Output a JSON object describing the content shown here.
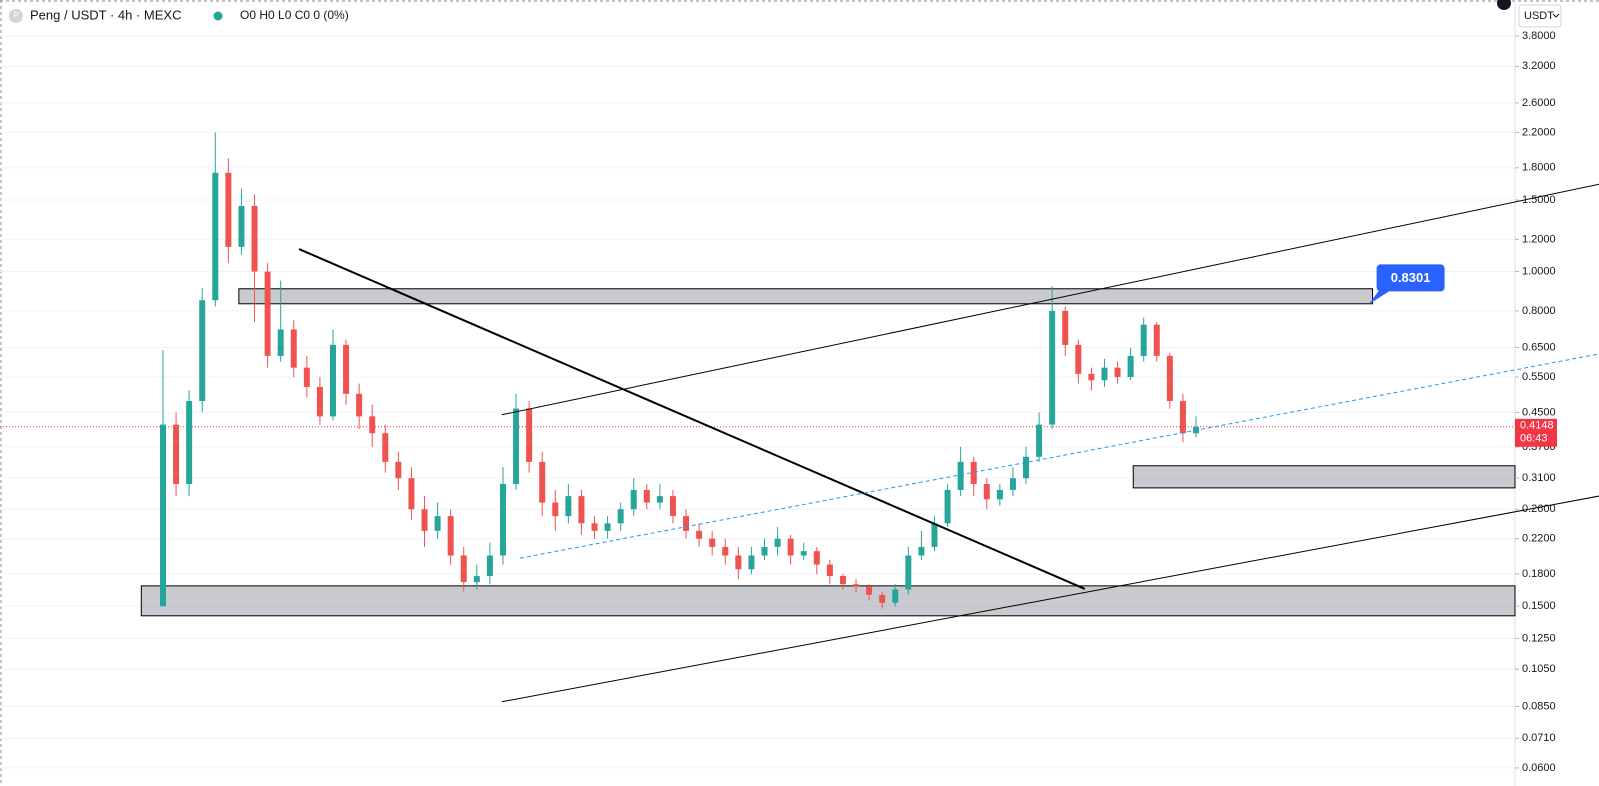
{
  "header": {
    "symbol": "Peng / USDT · 4h · MEXC",
    "ohlc": "O0 H0 L0 C0 0 (0%)",
    "currency": "USDT"
  },
  "chart_data": {
    "type": "candlestick",
    "log_scale": true,
    "grid": true,
    "up_color": "#26a69a",
    "down_color": "#ef5350",
    "open": [
      0.15,
      0.42,
      0.3,
      0.48,
      0.85,
      1.75,
      1.15,
      1.45,
      1.0,
      0.62,
      0.72,
      0.58,
      0.52,
      0.44,
      0.66,
      0.5,
      0.44,
      0.4,
      0.34,
      0.31,
      0.26,
      0.23,
      0.25,
      0.2,
      0.172,
      0.178,
      0.2,
      0.3,
      0.46,
      0.34,
      0.27,
      0.25,
      0.28,
      0.24,
      0.23,
      0.24,
      0.26,
      0.29,
      0.27,
      0.28,
      0.25,
      0.23,
      0.22,
      0.21,
      0.2,
      0.185,
      0.2,
      0.21,
      0.22,
      0.2,
      0.205,
      0.19,
      0.178,
      0.17,
      0.168,
      0.16,
      0.153,
      0.165,
      0.2,
      0.21,
      0.24,
      0.29,
      0.34,
      0.3,
      0.275,
      0.29,
      0.31,
      0.35,
      0.42,
      0.8,
      0.66,
      0.56,
      0.54,
      0.58,
      0.55,
      0.62,
      0.74,
      0.62,
      0.48,
      0.4
    ],
    "high": [
      0.64,
      0.45,
      0.51,
      0.91,
      2.2,
      1.9,
      1.6,
      1.55,
      1.05,
      0.95,
      0.76,
      0.62,
      0.55,
      0.72,
      0.68,
      0.53,
      0.47,
      0.42,
      0.36,
      0.33,
      0.28,
      0.27,
      0.26,
      0.21,
      0.19,
      0.215,
      0.33,
      0.5,
      0.48,
      0.36,
      0.29,
      0.3,
      0.29,
      0.25,
      0.25,
      0.27,
      0.31,
      0.3,
      0.3,
      0.29,
      0.26,
      0.24,
      0.23,
      0.22,
      0.21,
      0.21,
      0.22,
      0.235,
      0.225,
      0.215,
      0.21,
      0.195,
      0.18,
      0.175,
      0.17,
      0.163,
      0.17,
      0.21,
      0.23,
      0.25,
      0.3,
      0.37,
      0.35,
      0.31,
      0.3,
      0.33,
      0.37,
      0.45,
      0.92,
      0.82,
      0.68,
      0.58,
      0.61,
      0.6,
      0.65,
      0.77,
      0.75,
      0.63,
      0.5,
      0.44
    ],
    "low": [
      0.15,
      0.28,
      0.28,
      0.45,
      0.82,
      1.05,
      1.1,
      0.75,
      0.58,
      0.6,
      0.55,
      0.49,
      0.42,
      0.43,
      0.47,
      0.41,
      0.37,
      0.32,
      0.29,
      0.245,
      0.21,
      0.22,
      0.19,
      0.163,
      0.165,
      0.17,
      0.19,
      0.29,
      0.32,
      0.25,
      0.23,
      0.24,
      0.225,
      0.22,
      0.22,
      0.23,
      0.25,
      0.26,
      0.26,
      0.24,
      0.22,
      0.21,
      0.2,
      0.19,
      0.175,
      0.18,
      0.195,
      0.2,
      0.19,
      0.195,
      0.18,
      0.17,
      0.165,
      0.162,
      0.155,
      0.148,
      0.15,
      0.16,
      0.195,
      0.205,
      0.235,
      0.28,
      0.28,
      0.26,
      0.265,
      0.28,
      0.3,
      0.34,
      0.41,
      0.62,
      0.53,
      0.51,
      0.52,
      0.53,
      0.54,
      0.6,
      0.6,
      0.46,
      0.38,
      0.39
    ],
    "close": [
      0.42,
      0.3,
      0.48,
      0.85,
      1.75,
      1.15,
      1.45,
      1.0,
      0.62,
      0.72,
      0.58,
      0.52,
      0.44,
      0.66,
      0.5,
      0.44,
      0.4,
      0.34,
      0.31,
      0.26,
      0.23,
      0.25,
      0.2,
      0.172,
      0.178,
      0.2,
      0.3,
      0.46,
      0.34,
      0.27,
      0.25,
      0.28,
      0.24,
      0.23,
      0.24,
      0.26,
      0.29,
      0.27,
      0.28,
      0.25,
      0.23,
      0.22,
      0.21,
      0.2,
      0.185,
      0.2,
      0.21,
      0.22,
      0.2,
      0.205,
      0.19,
      0.178,
      0.17,
      0.168,
      0.16,
      0.153,
      0.165,
      0.2,
      0.21,
      0.24,
      0.29,
      0.34,
      0.3,
      0.275,
      0.29,
      0.31,
      0.35,
      0.42,
      0.8,
      0.66,
      0.56,
      0.54,
      0.58,
      0.55,
      0.62,
      0.74,
      0.62,
      0.48,
      0.4,
      0.4148
    ],
    "ylim": [
      0.0593,
      4.66
    ],
    "yticks": [
      {
        "value": 3.8,
        "label": "3.8000"
      },
      {
        "value": 3.2,
        "label": "3.2000"
      },
      {
        "value": 2.6,
        "label": "2.6000"
      },
      {
        "value": 2.2,
        "label": "2.2000"
      },
      {
        "value": 1.8,
        "label": "1.8000"
      },
      {
        "value": 1.5,
        "label": "1.5000"
      },
      {
        "value": 1.2,
        "label": "1.2000"
      },
      {
        "value": 1.0,
        "label": "1.0000"
      },
      {
        "value": 0.8,
        "label": "0.8000"
      },
      {
        "value": 0.65,
        "label": "0.6500"
      },
      {
        "value": 0.55,
        "label": "0.5500"
      },
      {
        "value": 0.45,
        "label": "0.4500"
      },
      {
        "value": 0.37,
        "label": "0.3700"
      },
      {
        "value": 0.31,
        "label": "0.3100"
      },
      {
        "value": 0.26,
        "label": "0.2600"
      },
      {
        "value": 0.22,
        "label": "0.2200"
      },
      {
        "value": 0.18,
        "label": "0.1800"
      },
      {
        "value": 0.15,
        "label": "0.1500"
      },
      {
        "value": 0.125,
        "label": "0.1250"
      },
      {
        "value": 0.105,
        "label": "0.1050"
      },
      {
        "value": 0.085,
        "label": "0.0850"
      },
      {
        "value": 0.071,
        "label": "0.0710"
      },
      {
        "value": 0.06,
        "label": "0.0600"
      }
    ],
    "last_price": {
      "value": 0.4148,
      "countdown": "06:43",
      "color": "#f23645"
    },
    "zones": [
      {
        "from": 5.8,
        "to": 92.5,
        "top": 0.907,
        "bottom": 0.833
      },
      {
        "from": 74.2,
        "top": 0.3326,
        "bottom": 0.2934,
        "extend_right": true
      },
      {
        "from": -1.66,
        "top": 0.1684,
        "bottom": 0.1421,
        "extend_right": true
      }
    ],
    "trendlines": [
      {
        "x": [
          10.4,
          70.5
        ],
        "values": [
          1.136,
          0.1655
        ],
        "color": "#000000",
        "width": 2,
        "dashed": false
      },
      {
        "x": [
          25.9,
          110.3
        ],
        "values": [
          0.444,
          1.652
        ],
        "color": "#000000",
        "width": 1,
        "dashed": false
      },
      {
        "x": [
          25.9,
          110.3
        ],
        "values": [
          0.0873,
          0.282
        ],
        "color": "#000000",
        "width": 1,
        "dashed": false
      },
      {
        "x": [
          27.3,
          110.3
        ],
        "values": [
          0.197,
          0.631
        ],
        "color": "#2196f3",
        "width": 1,
        "dashed": true
      }
    ],
    "callout": {
      "x": 92.2,
      "value": 0.8301,
      "color": "#2962ff"
    }
  }
}
